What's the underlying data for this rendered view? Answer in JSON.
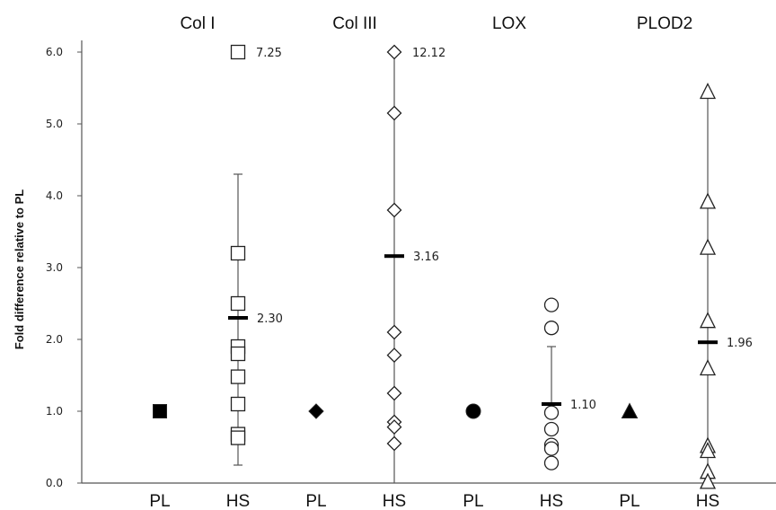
{
  "chart_data": {
    "type": "scatter",
    "ylabel": "Fold difference relative to PL",
    "ylim": [
      0,
      6
    ],
    "yticks": [
      "0.0",
      "1.0",
      "2.0",
      "3.0",
      "4.0",
      "5.0",
      "6.0"
    ],
    "grid": false,
    "categories": [
      "PL",
      "HS",
      "PL",
      "HS",
      "PL",
      "HS",
      "PL",
      "HS"
    ],
    "groups": [
      {
        "name": "Col I",
        "marker": "square",
        "pl_value": 1.0,
        "hs_values": [
          7.25,
          3.2,
          2.5,
          1.9,
          1.8,
          1.48,
          1.1,
          0.68,
          0.63
        ],
        "mean": 2.3,
        "mean_label": "2.30",
        "error_low": 0.25,
        "error_high": 4.3,
        "outlier_label": "7.25"
      },
      {
        "name": "Col III",
        "marker": "diamond",
        "pl_value": 1.0,
        "hs_values": [
          12.12,
          5.15,
          3.8,
          2.1,
          1.78,
          1.25,
          0.85,
          0.78,
          0.55
        ],
        "mean": 3.16,
        "mean_label": "3.16",
        "error_low": 0.0,
        "error_high": 6.0,
        "outlier_label": "12.12"
      },
      {
        "name": "LOX",
        "marker": "circle",
        "pl_value": 1.0,
        "hs_values": [
          2.48,
          2.16,
          0.98,
          0.75,
          0.53,
          0.48,
          0.28
        ],
        "mean": 1.1,
        "mean_label": "1.10",
        "error_low": 1.1,
        "error_high": 1.9
      },
      {
        "name": "PLOD2",
        "marker": "triangle",
        "pl_value": 1.0,
        "hs_values": [
          5.45,
          3.92,
          3.28,
          2.26,
          1.6,
          0.52,
          0.45,
          0.16,
          0.02
        ],
        "mean": 1.96,
        "mean_label": "1.96",
        "error_low": 0.0,
        "error_high": 5.45
      }
    ]
  }
}
